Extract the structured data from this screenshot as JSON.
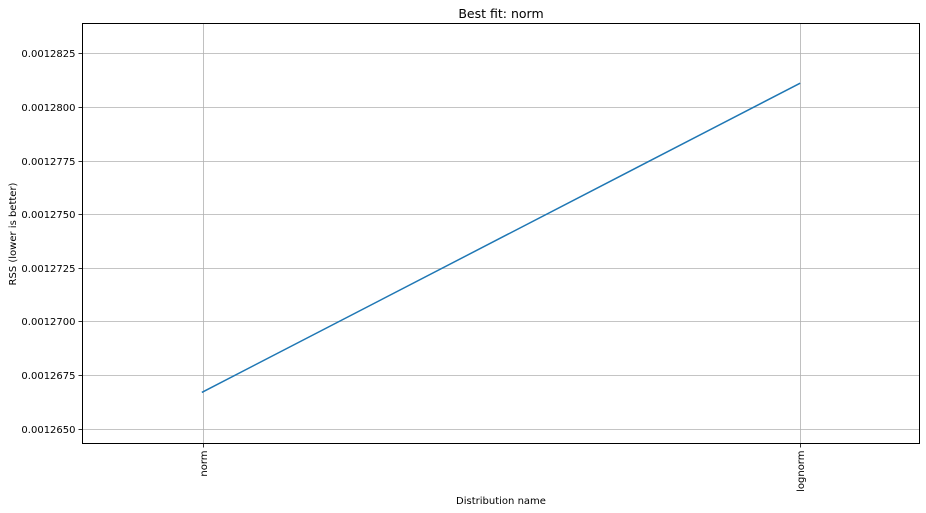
{
  "chart_data": {
    "type": "line",
    "title": "Best fit: norm",
    "xlabel": "Distribution name",
    "ylabel": "RSS (lower is better)",
    "categories": [
      "norm",
      "lognorm"
    ],
    "series": [
      {
        "values": [
          0.0012667,
          0.0012811
        ],
        "color": "#1f77b4"
      }
    ],
    "ylim": [
      0.0012643,
      0.0012839
    ],
    "yticks": [
      0.001265,
      0.0012675,
      0.00127,
      0.0012725,
      0.001275,
      0.0012775,
      0.00128,
      0.0012825
    ],
    "ytick_labels": [
      "0.0012650",
      "0.0012675",
      "0.0012700",
      "0.0012725",
      "0.0012750",
      "0.0012775",
      "0.0012800",
      "0.0012825"
    ],
    "xtick_rotation_deg": -90,
    "grid": true,
    "legend": "none"
  }
}
